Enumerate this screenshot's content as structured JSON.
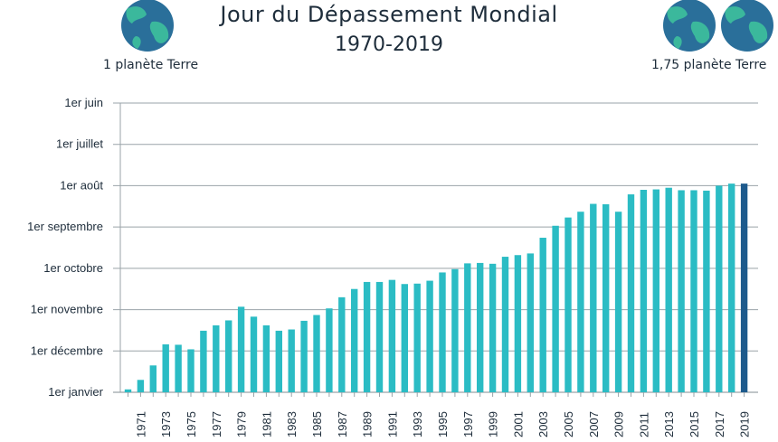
{
  "header": {
    "title": "Jour du Dépassement Mondial",
    "subtitle": "1970-2019",
    "left_caption": "1 planète Terre",
    "right_caption": "1,75 planète Terre"
  },
  "icons": {
    "left": "earth-globe-icon",
    "right": "earth-globe-icon"
  },
  "colors": {
    "bar": "#2bbcc4",
    "highlight": "#1d5a8c",
    "grid": "#9aa3a8",
    "text": "#1e2d3b",
    "ocean": "#2a6f9a",
    "land": "#3bb89c"
  },
  "chart_data": {
    "type": "bar",
    "title": "Jour du Dépassement Mondial",
    "subtitle": "1970-2019",
    "y_axis": {
      "unit": "months before year end",
      "ylim": [
        0,
        7
      ],
      "ticks": [
        {
          "value": 0,
          "label": "1er janvier"
        },
        {
          "value": 1,
          "label": "1er décembre"
        },
        {
          "value": 2,
          "label": "1er novembre"
        },
        {
          "value": 3,
          "label": "1er octobre"
        },
        {
          "value": 4,
          "label": "1er septembre"
        },
        {
          "value": 5,
          "label": "1er août"
        },
        {
          "value": 6,
          "label": "1er juillet"
        },
        {
          "value": 7,
          "label": "1er juin"
        }
      ]
    },
    "grid": true,
    "x": [
      1970,
      1971,
      1972,
      1973,
      1974,
      1975,
      1976,
      1977,
      1978,
      1979,
      1980,
      1981,
      1982,
      1983,
      1984,
      1985,
      1986,
      1987,
      1988,
      1989,
      1990,
      1991,
      1992,
      1993,
      1994,
      1995,
      1996,
      1997,
      1998,
      1999,
      2000,
      2001,
      2002,
      2003,
      2004,
      2005,
      2006,
      2007,
      2008,
      2009,
      2010,
      2011,
      2012,
      2013,
      2014,
      2015,
      2016,
      2017,
      2018,
      2019
    ],
    "x_tick_labels": [
      "1971",
      "1973",
      "1975",
      "1977",
      "1979",
      "1981",
      "1983",
      "1985",
      "1987",
      "1989",
      "1991",
      "1993",
      "1995",
      "1997",
      "1999",
      "2001",
      "2003",
      "2005",
      "2007",
      "2009",
      "2011",
      "2013",
      "2015",
      "2017",
      "2019"
    ],
    "values": [
      0.07,
      0.3,
      0.65,
      1.16,
      1.15,
      1.04,
      1.49,
      1.62,
      1.74,
      2.07,
      1.83,
      1.62,
      1.49,
      1.52,
      1.73,
      1.87,
      2.03,
      2.3,
      2.5,
      2.67,
      2.67,
      2.72,
      2.62,
      2.63,
      2.7,
      2.9,
      2.98,
      3.12,
      3.13,
      3.11,
      3.28,
      3.32,
      3.36,
      3.74,
      4.03,
      4.23,
      4.37,
      4.56,
      4.55,
      4.37,
      4.79,
      4.9,
      4.91,
      4.95,
      4.89,
      4.89,
      4.88,
      5.0,
      5.05,
      5.05
    ],
    "highlight_year": 2019
  }
}
